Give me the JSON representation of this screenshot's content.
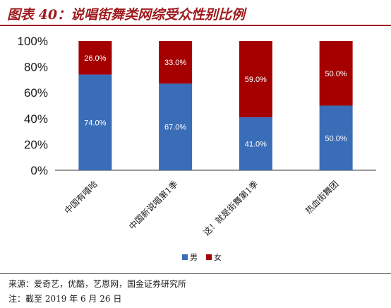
{
  "title": "图表 40：说唱街舞类网综受众性别比例",
  "footer": {
    "source": "来源：爱奇艺，优酷，艺恩网，国金证券研究所",
    "note": "注：截至 2019 年 6 月 26 日"
  },
  "chart_data": {
    "type": "bar",
    "stacked": true,
    "categories": [
      "中国有嘻哈",
      "中国新说唱第1季",
      "这！就是街舞第1季",
      "热血街舞团"
    ],
    "series": [
      {
        "name": "男",
        "color": "#3a6db8",
        "values": [
          74.0,
          67.0,
          41.0,
          50.0
        ],
        "labels": [
          "74.0%",
          "67.0%",
          "41.0%",
          "50.0%"
        ]
      },
      {
        "name": "女",
        "color": "#a50000",
        "values": [
          26.0,
          33.0,
          59.0,
          50.0
        ],
        "labels": [
          "26.0%",
          "33.0%",
          "59.0%",
          "50.0%"
        ]
      }
    ],
    "y_ticks": [
      "0%",
      "20%",
      "40%",
      "60%",
      "80%",
      "100%"
    ],
    "ylim": [
      0,
      100
    ],
    "grid": false,
    "legend_position": "bottom-center"
  }
}
